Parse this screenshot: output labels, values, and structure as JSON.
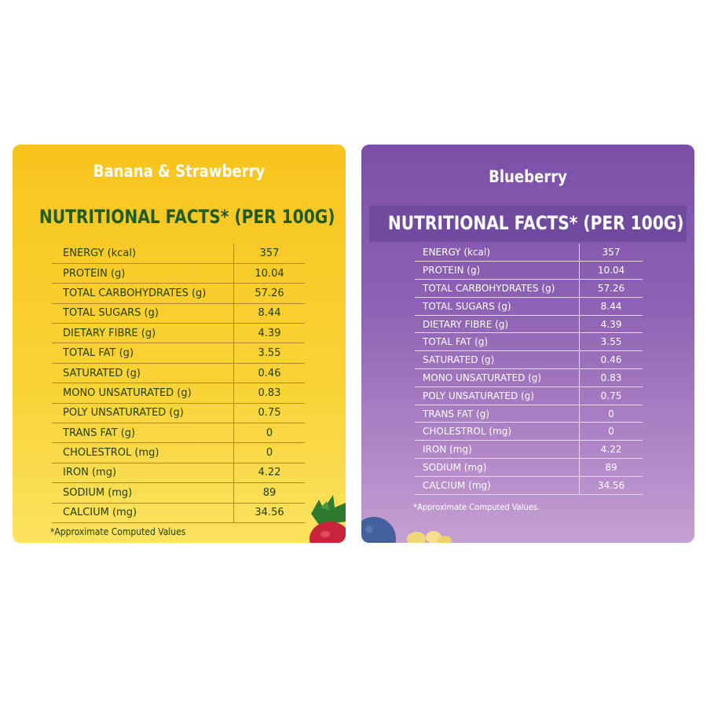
{
  "yellow_card": {
    "title": "Banana & Strawberry",
    "heading": "NUTRITIONAL FACTS* (PER 100G)",
    "rows": [
      {
        "label": "ENERGY (kcal)",
        "value": "357"
      },
      {
        "label": "PROTEIN (g)",
        "value": "10.04"
      },
      {
        "label": "TOTAL CARBOHYDRATES (g)",
        "value": "57.26"
      },
      {
        "label": "TOTAL SUGARS (g)",
        "value": "8.44"
      },
      {
        "label": "DIETARY FIBRE (g)",
        "value": "4.39"
      },
      {
        "label": "TOTAL FAT (g)",
        "value": "3.55"
      },
      {
        "label": "SATURATED (g)",
        "value": "0.46"
      },
      {
        "label": "MONO UNSATURATED (g)",
        "value": "0.83"
      },
      {
        "label": "POLY UNSATURATED (g)",
        "value": "0.75"
      },
      {
        "label": "TRANS FAT (g)",
        "value": "0"
      },
      {
        "label": "CHOLESTROL (mg)",
        "value": "0"
      },
      {
        "label": "IRON (mg)",
        "value": "4.22"
      },
      {
        "label": "SODIUM (mg)",
        "value": "89"
      },
      {
        "label": "CALCIUM (mg)",
        "value": "34.56"
      }
    ],
    "footnote": "*Approximate Computed Values"
  },
  "purple_card": {
    "title": "Blueberry",
    "heading": "NUTRITIONAL FACTS* (PER 100G)",
    "rows": [
      {
        "label": "ENERGY (kcal)",
        "value": "357"
      },
      {
        "label": "PROTEIN (g)",
        "value": "10.04"
      },
      {
        "label": "TOTAL CARBOHYDRATES (g)",
        "value": "57.26"
      },
      {
        "label": "TOTAL SUGARS (g)",
        "value": "8.44"
      },
      {
        "label": "DIETARY FIBRE (g)",
        "value": "4.39"
      },
      {
        "label": "TOTAL FAT (g)",
        "value": "3.55"
      },
      {
        "label": "SATURATED (g)",
        "value": "0.46"
      },
      {
        "label": "MONO UNSATURATED (g)",
        "value": "0.83"
      },
      {
        "label": "POLY UNSATURATED (g)",
        "value": "0.75"
      },
      {
        "label": "TRANS FAT (g)",
        "value": "0"
      },
      {
        "label": "CHOLESTROL (mg)",
        "value": "0"
      },
      {
        "label": "IRON (mg)",
        "value": "4.22"
      },
      {
        "label": "SODIUM (mg)",
        "value": "89"
      },
      {
        "label": "CALCIUM (mg)",
        "value": "34.56"
      }
    ],
    "footnote": "*Approximate Computed Values."
  },
  "colors": {
    "yellow_bg": "#f8c41d",
    "yellow_heading": "#1f5b1f",
    "purple_bg": "#7b50a8",
    "purple_band": "#6f4a9f"
  },
  "decorations": [
    "strawberry-icon",
    "blueberry-icon",
    "cereal-puff-icon"
  ]
}
